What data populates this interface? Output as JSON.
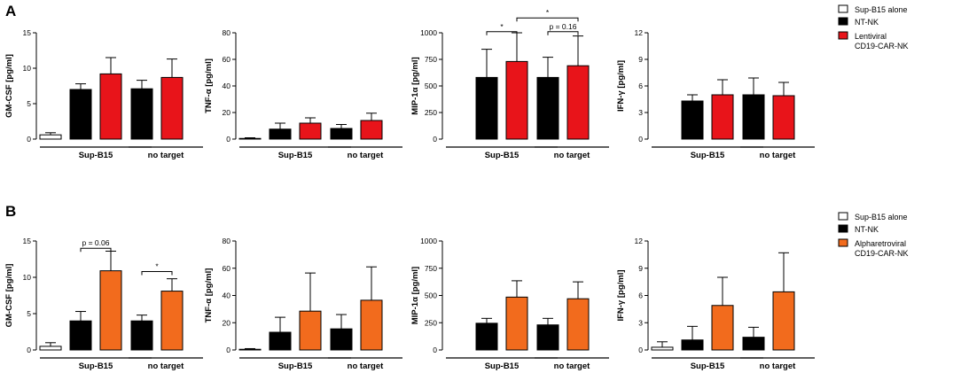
{
  "figure": {
    "panel_letters": [
      "A",
      "B"
    ]
  },
  "legends": [
    {
      "panel": "A",
      "entries": [
        {
          "lines": [
            "Sup-B15 alone"
          ],
          "color": "#ffffff"
        },
        {
          "lines": [
            "NT-NK"
          ],
          "color": "#000000"
        },
        {
          "lines": [
            "Lentiviral",
            "CD19-CAR-NK"
          ],
          "color": "#e8141a"
        }
      ]
    },
    {
      "panel": "B",
      "entries": [
        {
          "lines": [
            "Sup-B15 alone"
          ],
          "color": "#ffffff"
        },
        {
          "lines": [
            "NT-NK"
          ],
          "color": "#000000"
        },
        {
          "lines": [
            "Alpharetroviral",
            "CD19-CAR-NK"
          ],
          "color": "#f26b1d"
        }
      ]
    }
  ],
  "chart_data": [
    {
      "type": "bar",
      "panel": "A",
      "ylabel": "GM-CSF [pg/ml]",
      "ylim": [
        0,
        15
      ],
      "yticks": [
        0,
        5,
        10,
        15
      ],
      "groups": [
        "Sup-B15",
        "no target"
      ],
      "bars": [
        {
          "value": 0.6,
          "error": 0.3,
          "color": "#ffffff"
        },
        {
          "value": 7.0,
          "error": 0.8,
          "color": "#000000"
        },
        {
          "value": 9.2,
          "error": 2.3,
          "color": "#e8141a"
        },
        {
          "value": 7.1,
          "error": 1.2,
          "color": "#000000"
        },
        {
          "value": 8.7,
          "error": 2.6,
          "color": "#e8141a"
        }
      ],
      "annotations": []
    },
    {
      "type": "bar",
      "panel": "A",
      "ylabel": "TNF-α [pg/ml]",
      "ylim": [
        0,
        80
      ],
      "yticks": [
        0,
        20,
        40,
        60,
        80
      ],
      "groups": [
        "Sup-B15",
        "no target"
      ],
      "bars": [
        {
          "value": 0.5,
          "error": 0.5,
          "color": "#ffffff"
        },
        {
          "value": 7.5,
          "error": 4.5,
          "color": "#000000"
        },
        {
          "value": 12.0,
          "error": 4.0,
          "color": "#e8141a"
        },
        {
          "value": 8.0,
          "error": 3.0,
          "color": "#000000"
        },
        {
          "value": 14.0,
          "error": 5.5,
          "color": "#e8141a"
        }
      ],
      "annotations": []
    },
    {
      "type": "bar",
      "panel": "A",
      "ylabel": "MIP-1α [pg/ml]",
      "ylim": [
        0,
        1000
      ],
      "yticks": [
        0,
        250,
        500,
        750,
        1000
      ],
      "groups": [
        "Sup-B15",
        "no target"
      ],
      "bars": [
        {
          "value": 0,
          "error": 0,
          "color": "#ffffff"
        },
        {
          "value": 580,
          "error": 265,
          "color": "#000000"
        },
        {
          "value": 730,
          "error": 270,
          "color": "#e8141a"
        },
        {
          "value": 580,
          "error": 190,
          "color": "#000000"
        },
        {
          "value": 690,
          "error": 280,
          "color": "#e8141a"
        }
      ],
      "annotations": [
        {
          "from": 1,
          "to": 2,
          "y": 1010,
          "label": "*"
        },
        {
          "from": 3,
          "to": 4,
          "y": 1010,
          "label": "p = 0.16"
        },
        {
          "from": 2,
          "to": 4,
          "y": 1140,
          "label": "*"
        }
      ]
    },
    {
      "type": "bar",
      "panel": "A",
      "ylabel": "IFN-γ [pg/ml]",
      "ylim": [
        0,
        12
      ],
      "yticks": [
        0,
        3,
        6,
        9,
        12
      ],
      "groups": [
        "Sup-B15",
        "no target"
      ],
      "bars": [
        {
          "value": 0,
          "error": 0,
          "color": "#ffffff"
        },
        {
          "value": 4.3,
          "error": 0.7,
          "color": "#000000"
        },
        {
          "value": 5.0,
          "error": 1.7,
          "color": "#e8141a"
        },
        {
          "value": 5.0,
          "error": 1.9,
          "color": "#000000"
        },
        {
          "value": 4.9,
          "error": 1.5,
          "color": "#e8141a"
        }
      ],
      "annotations": []
    },
    {
      "type": "bar",
      "panel": "B",
      "ylabel": "GM-CSF [pg/ml]",
      "ylim": [
        0,
        15
      ],
      "yticks": [
        0,
        5,
        10,
        15
      ],
      "groups": [
        "Sup-B15",
        "no target"
      ],
      "bars": [
        {
          "value": 0.5,
          "error": 0.5,
          "color": "#ffffff"
        },
        {
          "value": 4.0,
          "error": 1.3,
          "color": "#000000"
        },
        {
          "value": 10.9,
          "error": 2.7,
          "color": "#f26b1d"
        },
        {
          "value": 4.0,
          "error": 0.8,
          "color": "#000000"
        },
        {
          "value": 8.1,
          "error": 1.7,
          "color": "#f26b1d"
        }
      ],
      "annotations": [
        {
          "from": 1,
          "to": 2,
          "y": 14.0,
          "label": "p = 0.06"
        },
        {
          "from": 3,
          "to": 4,
          "y": 10.8,
          "label": "*"
        }
      ]
    },
    {
      "type": "bar",
      "panel": "B",
      "ylabel": "TNF-α [pg/ml]",
      "ylim": [
        0,
        80
      ],
      "yticks": [
        0,
        20,
        40,
        60,
        80
      ],
      "groups": [
        "Sup-B15",
        "no target"
      ],
      "bars": [
        {
          "value": 0.5,
          "error": 0.5,
          "color": "#ffffff"
        },
        {
          "value": 13.0,
          "error": 11.0,
          "color": "#000000"
        },
        {
          "value": 28.5,
          "error": 28.0,
          "color": "#f26b1d"
        },
        {
          "value": 15.5,
          "error": 10.5,
          "color": "#000000"
        },
        {
          "value": 36.5,
          "error": 24.5,
          "color": "#f26b1d"
        }
      ],
      "annotations": []
    },
    {
      "type": "bar",
      "panel": "B",
      "ylabel": "MIP-1α [pg/ml]",
      "ylim": [
        0,
        1000
      ],
      "yticks": [
        0,
        250,
        500,
        750,
        1000
      ],
      "groups": [
        "Sup-B15",
        "no target"
      ],
      "bars": [
        {
          "value": 0,
          "error": 0,
          "color": "#ffffff"
        },
        {
          "value": 245,
          "error": 45,
          "color": "#000000"
        },
        {
          "value": 485,
          "error": 150,
          "color": "#f26b1d"
        },
        {
          "value": 230,
          "error": 60,
          "color": "#000000"
        },
        {
          "value": 470,
          "error": 155,
          "color": "#f26b1d"
        }
      ],
      "annotations": []
    },
    {
      "type": "bar",
      "panel": "B",
      "ylabel": "IFN-γ [pg/ml]",
      "ylim": [
        0,
        12
      ],
      "yticks": [
        0,
        3,
        6,
        9,
        12
      ],
      "groups": [
        "Sup-B15",
        "no target"
      ],
      "bars": [
        {
          "value": 0.3,
          "error": 0.6,
          "color": "#ffffff"
        },
        {
          "value": 1.1,
          "error": 1.5,
          "color": "#000000"
        },
        {
          "value": 4.9,
          "error": 3.1,
          "color": "#f26b1d"
        },
        {
          "value": 1.4,
          "error": 1.1,
          "color": "#000000"
        },
        {
          "value": 6.4,
          "error": 4.3,
          "color": "#f26b1d"
        }
      ],
      "annotations": []
    }
  ]
}
